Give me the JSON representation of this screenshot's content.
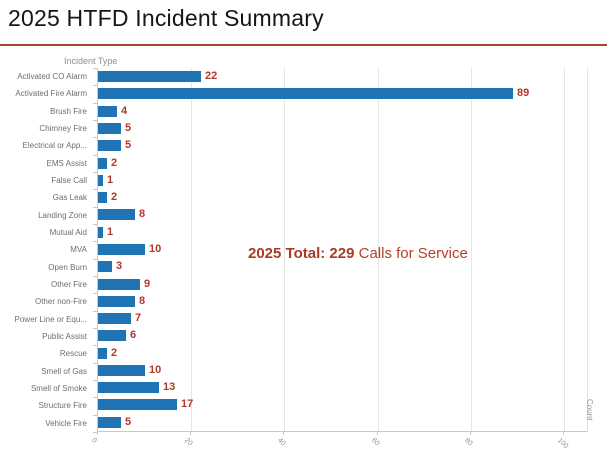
{
  "page": {
    "title": "2025 HTFD Incident Summary"
  },
  "chart": {
    "y_axis_title": "Incident Type",
    "x_axis_title": "Count",
    "annotation": {
      "bold": "2025 Total: 229",
      "regular": " Calls for Service"
    },
    "colors": {
      "bar": "#2074b4",
      "value_label": "#b0392b",
      "annotation": "#b5412c",
      "title_rule": "#a94432",
      "axis_text": "#8f8f8f",
      "gridline": "#e5e5e5"
    }
  },
  "chart_data": {
    "type": "bar",
    "orientation": "horizontal",
    "title": "2025 HTFD Incident Summary",
    "xlabel": "Count",
    "ylabel": "Incident Type",
    "xlim": [
      0,
      105
    ],
    "x_ticks": [
      0,
      20,
      40,
      60,
      80,
      100
    ],
    "grid": true,
    "legend": false,
    "categories": [
      "Activated CO Alarm",
      "Activated Fire Alarm",
      "Brush Fire",
      "Chimney Fire",
      "Electrical or App...",
      "EMS Assist",
      "False Call",
      "Gas Leak",
      "Landing Zone",
      "Mutual Aid",
      "MVA",
      "Open Burn",
      "Other Fire",
      "Other non-Fire",
      "Power Line or Equ...",
      "Public Assist",
      "Rescue",
      "Smell of Gas",
      "Smell of Smoke",
      "Structure Fire",
      "Vehicle Fire"
    ],
    "values": [
      22,
      89,
      4,
      5,
      5,
      2,
      1,
      2,
      8,
      1,
      10,
      3,
      9,
      8,
      7,
      6,
      2,
      10,
      13,
      17,
      5
    ],
    "total": 229,
    "annotation": "2025 Total: 229 Calls for Service"
  }
}
